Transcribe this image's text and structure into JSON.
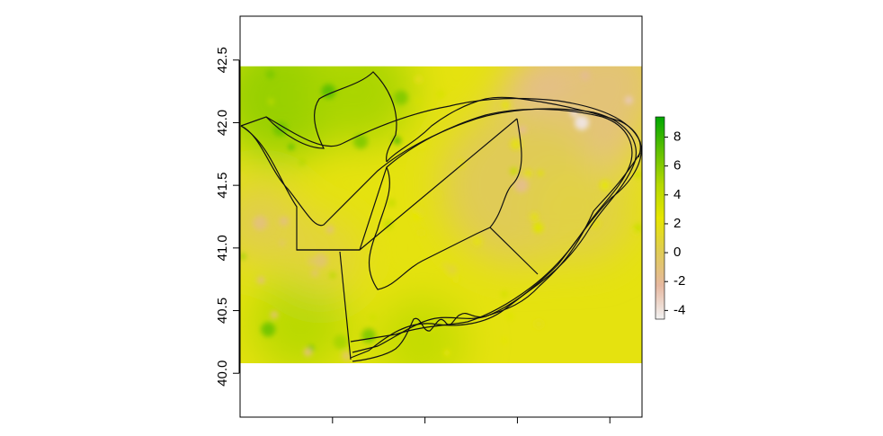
{
  "chart_data": {
    "type": "heatmap",
    "title": "",
    "xlabel": "",
    "ylabel": "",
    "ylim": [
      39.65,
      42.85
    ],
    "y_ticks": [
      "40.0",
      "40.5",
      "41.0",
      "41.5",
      "42.0",
      "42.5"
    ],
    "x_ticks_labeled": false,
    "raster_extent": {
      "y": [
        40.08,
        42.45
      ]
    },
    "colorbar": {
      "min": -4.6,
      "max": 9.4,
      "ticks": [
        "-4",
        "-2",
        "0",
        "2",
        "4",
        "6",
        "8"
      ],
      "colors": [
        "#f2f2f2",
        "#e6b8a0",
        "#e0cc55",
        "#e6e600",
        "#b4d800",
        "#5fc000",
        "#00a600"
      ]
    },
    "grid": false,
    "legend_position": "right",
    "field": {
      "base_value": 2.0,
      "gradient_note": "higher in west/north-west, lower in north-east",
      "peaks": [
        {
          "x": 0.1,
          "y": 41.95,
          "value": 6.5
        },
        {
          "x": 0.22,
          "y": 42.25,
          "value": 7
        },
        {
          "x": 0.3,
          "y": 41.85,
          "value": 6
        },
        {
          "x": 0.32,
          "y": 40.3,
          "value": 6
        },
        {
          "x": 0.07,
          "y": 40.35,
          "value": 6.5
        },
        {
          "x": 0.25,
          "y": 40.25,
          "value": 5
        },
        {
          "x": 0.4,
          "y": 42.2,
          "value": 6
        }
      ],
      "troughs": [
        {
          "x": 0.85,
          "y": 42.0,
          "value": -4
        },
        {
          "x": 0.7,
          "y": 41.5,
          "value": -1.5
        },
        {
          "x": 0.05,
          "y": 41.2,
          "value": -1
        },
        {
          "x": 0.2,
          "y": 40.9,
          "value": -0.5
        }
      ]
    }
  }
}
